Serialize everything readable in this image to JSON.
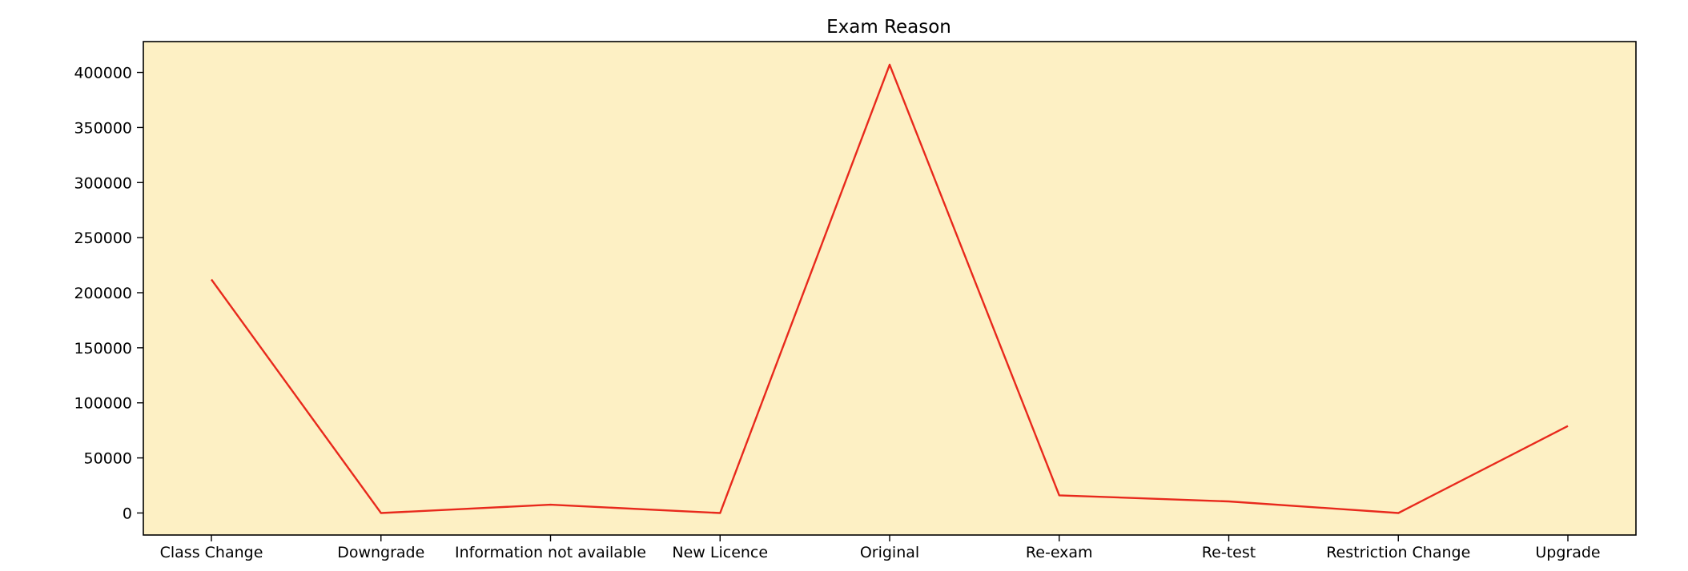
{
  "chart_data": {
    "type": "line",
    "title": "Exam Reason",
    "xlabel": "",
    "ylabel": "",
    "categories": [
      "Class Change",
      "Downgrade",
      "Information not available",
      "New Licence",
      "Original",
      "Re-exam",
      "Re-test",
      "Restriction Change",
      "Upgrade"
    ],
    "series": [
      {
        "values": [
          212000,
          0,
          7500,
          0,
          407000,
          16000,
          10500,
          0,
          79000
        ]
      }
    ],
    "yticks": [
      0,
      50000,
      100000,
      150000,
      200000,
      250000,
      300000,
      350000,
      400000
    ],
    "ylim": [
      -20000,
      428000
    ],
    "grid": false,
    "legend": "none",
    "colors": {
      "line": "#e8291c",
      "plot_background": "#fdf0c4",
      "axes": "#000000"
    }
  }
}
